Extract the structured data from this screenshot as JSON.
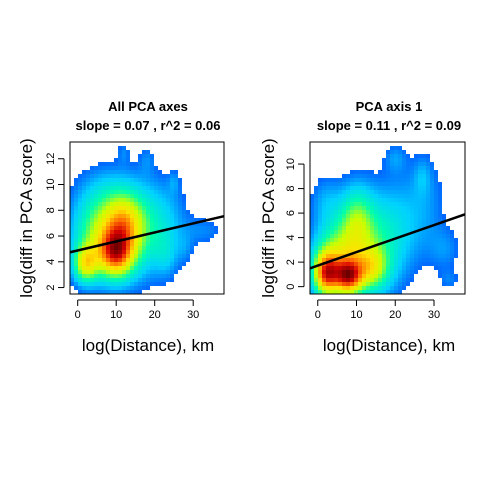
{
  "chart_data": [
    {
      "type": "heatmap",
      "title": "All PCA axes",
      "subtitle": "slope =  0.07 , r^2 = 0.06",
      "xlabel": "log(Distance), km",
      "ylabel": "log(diff in PCA score)",
      "xlim": [
        -2,
        38
      ],
      "ylim": [
        1.5,
        13.3
      ],
      "xticks": [
        "0",
        "10",
        "20",
        "30"
      ],
      "yticks": [
        "2",
        "4",
        "6",
        "8",
        "10",
        "12"
      ],
      "grid": false,
      "legend": "none",
      "fit_line": {
        "intercept": 4.88,
        "slope": 0.07,
        "color": "#000000"
      },
      "density_blobs": [
        {
          "x": 4,
          "y": 6,
          "sx": 4.5,
          "sy": 2.2,
          "w": 1.0
        },
        {
          "x": 11,
          "y": 6,
          "sx": 5,
          "sy": 2.3,
          "w": 1.0
        },
        {
          "x": 2,
          "y": 3.8,
          "sx": 2.2,
          "sy": 1.0,
          "w": 1.4
        },
        {
          "x": 10,
          "y": 4.6,
          "sx": 3.2,
          "sy": 1.3,
          "w": 1.8
        },
        {
          "x": 12,
          "y": 7.2,
          "sx": 3.5,
          "sy": 1.5,
          "w": 1.0
        },
        {
          "x": 18,
          "y": 6.5,
          "sx": 4.5,
          "sy": 2.5,
          "w": 0.6
        },
        {
          "x": 8,
          "y": 9.5,
          "sx": 6,
          "sy": 1.6,
          "w": 0.35
        },
        {
          "x": 24,
          "y": 7,
          "sx": 4,
          "sy": 2.5,
          "w": 0.35
        },
        {
          "x": 33,
          "y": 6.4,
          "sx": 3.5,
          "sy": 0.8,
          "w": 0.3
        },
        {
          "x": 12,
          "y": 12.5,
          "sx": 1.2,
          "sy": 0.6,
          "w": 0.25
        },
        {
          "x": 18,
          "y": 12,
          "sx": 1.5,
          "sy": 0.8,
          "w": 0.25
        },
        {
          "x": 25,
          "y": 10.2,
          "sx": 1,
          "sy": 0.6,
          "w": 0.25
        },
        {
          "x": 23,
          "y": 4.5,
          "sx": 2,
          "sy": 1.2,
          "w": 0.3
        },
        {
          "x": 28,
          "y": 5,
          "sx": 1.5,
          "sy": 0.8,
          "w": 0.2
        }
      ]
    },
    {
      "type": "heatmap",
      "title": "PCA axis 1",
      "subtitle": "slope =  0.11 , r^2 = 0.09",
      "xlabel": "log(Distance), km",
      "ylabel": "log(diff in PCA score)",
      "xlim": [
        -2,
        38
      ],
      "ylim": [
        -0.6,
        11.8
      ],
      "xticks": [
        "0",
        "10",
        "20",
        "30"
      ],
      "yticks": [
        "0",
        "2",
        "4",
        "6",
        "8",
        "10"
      ],
      "grid": false,
      "legend": "none",
      "fit_line": {
        "intercept": 1.72,
        "slope": 0.11,
        "color": "#000000"
      },
      "density_blobs": [
        {
          "x": 4,
          "y": 2,
          "sx": 4,
          "sy": 2,
          "w": 1.0
        },
        {
          "x": 12,
          "y": 3,
          "sx": 6,
          "sy": 2.8,
          "w": 0.8
        },
        {
          "x": 2,
          "y": 1,
          "sx": 2.2,
          "sy": 1.2,
          "w": 1.4
        },
        {
          "x": 8,
          "y": 0.8,
          "sx": 2.5,
          "sy": 1,
          "w": 1.5
        },
        {
          "x": 10,
          "y": 5.5,
          "sx": 3,
          "sy": 2,
          "w": 0.7
        },
        {
          "x": 14,
          "y": 1.5,
          "sx": 3,
          "sy": 1.2,
          "w": 0.8
        },
        {
          "x": 20,
          "y": 5,
          "sx": 5,
          "sy": 3,
          "w": 0.35
        },
        {
          "x": 2,
          "y": 7,
          "sx": 3,
          "sy": 1.5,
          "w": 0.3
        },
        {
          "x": 28,
          "y": 7,
          "sx": 4,
          "sy": 3,
          "w": 0.25
        },
        {
          "x": 20,
          "y": 10.5,
          "sx": 2,
          "sy": 0.8,
          "w": 0.25
        },
        {
          "x": 27,
          "y": 9,
          "sx": 1.5,
          "sy": 1,
          "w": 0.2
        },
        {
          "x": 33,
          "y": 3,
          "sx": 3,
          "sy": 1.3,
          "w": 0.25
        },
        {
          "x": 34,
          "y": 0.5,
          "sx": 2,
          "sy": 0.6,
          "w": 0.2
        }
      ]
    }
  ]
}
